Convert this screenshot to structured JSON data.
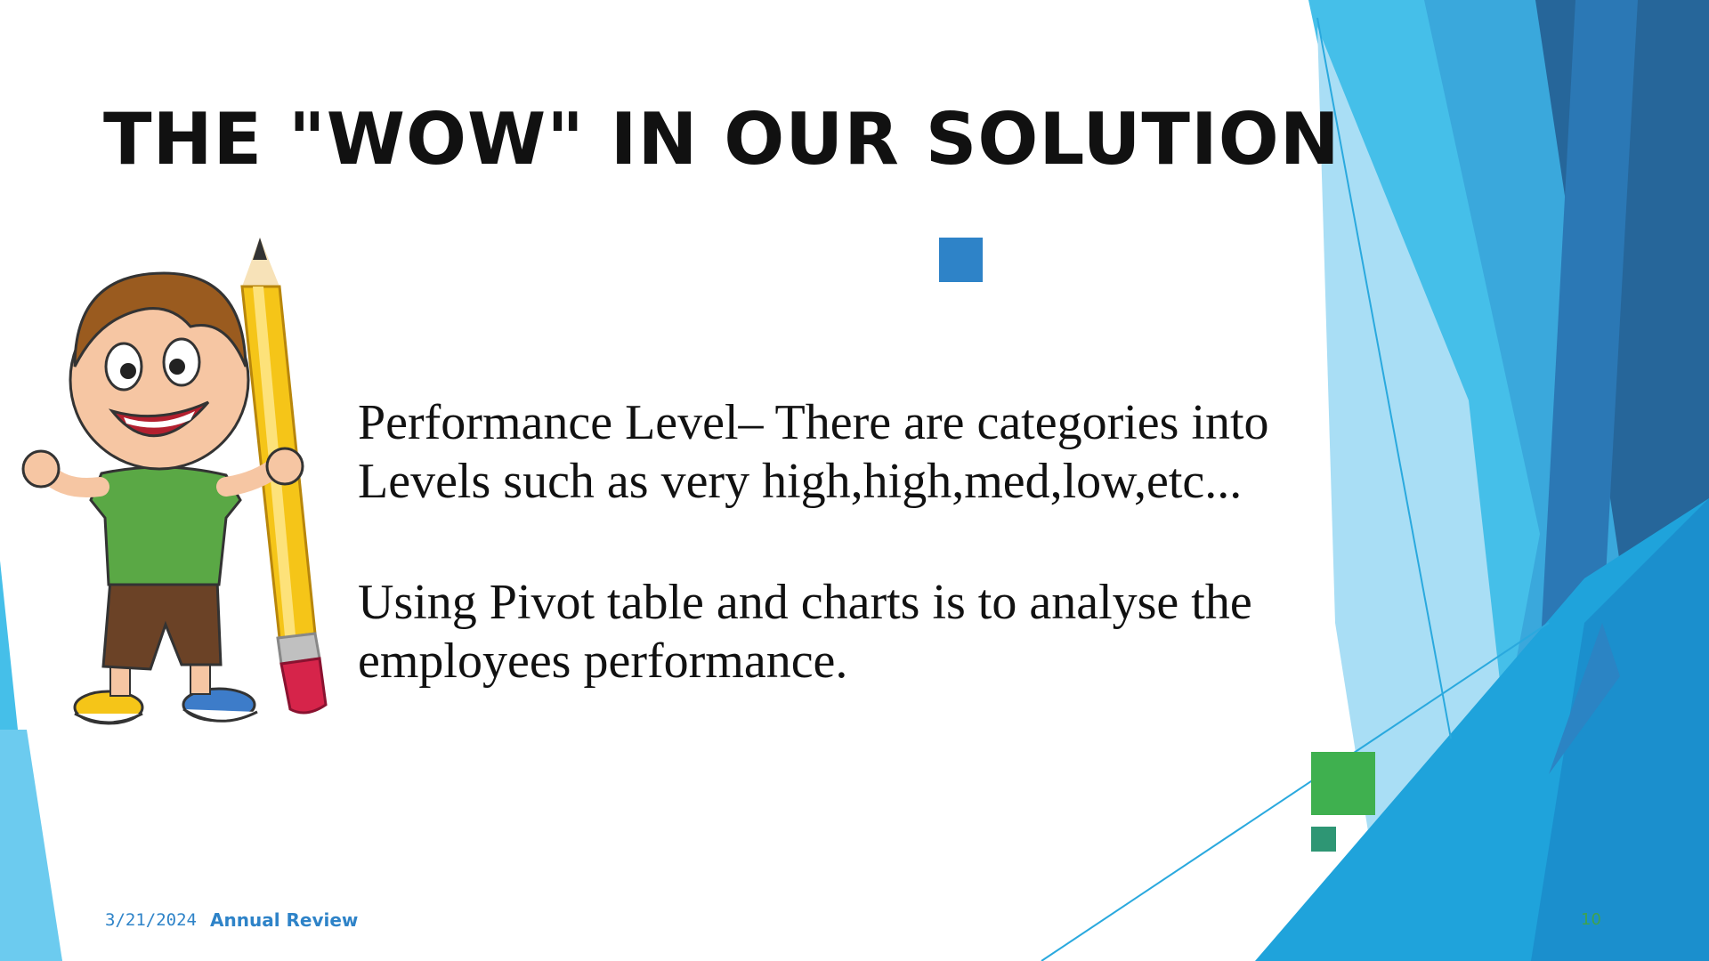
{
  "slide": {
    "title": "THE \"WOW\" IN OUR SOLUTION",
    "paragraphs": [
      "Performance Level– There are categories into Levels such as very high,high,med,low,etc...",
      "Using Pivot table and charts is to analyse the employees performance."
    ],
    "illustration": "cartoon-boy-with-pencil",
    "accent_colors": {
      "blue": "#2e83c8",
      "green": "#3fb04f",
      "teal": "#2e9674",
      "light_blue": "#45bfe9",
      "dark_blue": "#26669a"
    }
  },
  "footer": {
    "date": "3/21/2024",
    "title": "Annual Review",
    "slide_number": "10"
  }
}
